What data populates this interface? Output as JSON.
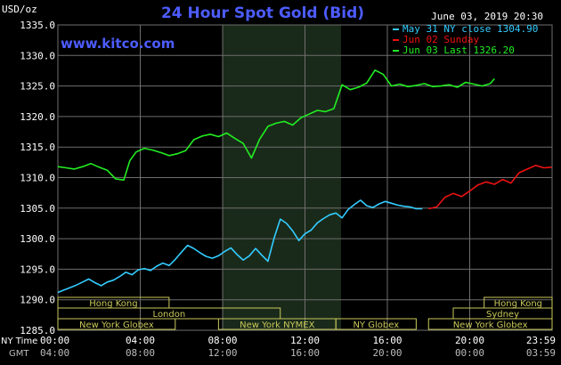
{
  "header": {
    "title": "24 Hour Spot Gold (Bid)",
    "unit": "USD/oz",
    "date": "June 03, 2019 20:30",
    "site": "www.kitco.com"
  },
  "colors": {
    "background": "#000000",
    "plot": "#000000",
    "grid": "#6e6e6e",
    "shade": "#1a2a1a",
    "title": "#4d5cff",
    "site": "#4d5cff",
    "text": "#ffffff",
    "green": "#22ee22",
    "cyan": "#33ccff",
    "red": "#ee1111",
    "market": "#c8c85a",
    "gmt_text": "#bbbbbb"
  },
  "markets": [
    {
      "name": "Hong Kong",
      "row": 0,
      "start": 0.0,
      "end": 9.0
    },
    {
      "name": "London",
      "row": 1,
      "start": 0.0,
      "end": 18.0
    },
    {
      "name": "New York NYMEX",
      "row": 2,
      "start": 13.0,
      "end": 22.5
    },
    {
      "name": "New York Globex",
      "row": 2,
      "start": 0.0,
      "end": 9.5
    },
    {
      "name": "NY Globex",
      "row": 2,
      "start": 22.5,
      "end": 29.0
    },
    {
      "name": "Hong Kong",
      "row": 0,
      "start": 34.5,
      "end": 40.0
    },
    {
      "name": "Sydney",
      "row": 1,
      "start": 32.0,
      "end": 40.0
    },
    {
      "name": "New York Globex",
      "row": 2,
      "start": 30.0,
      "end": 40.0
    }
  ],
  "time_axis": {
    "ny_label": "NY Time",
    "gmt_label": "GMT",
    "ny_ticks": [
      "00:00",
      "04:00",
      "08:00",
      "12:00",
      "16:00",
      "20:00",
      "23:59"
    ],
    "gmt_ticks": [
      "04:00",
      "08:00",
      "12:00",
      "16:00",
      "20:00",
      "00:00",
      "03:59"
    ]
  },
  "chart_data": {
    "type": "line",
    "title": "24 Hour Spot Gold (Bid)",
    "ylabel": "USD/oz",
    "xlabel": "NY Time",
    "ylim": [
      1285.0,
      1335.0
    ],
    "yticks": [
      1285.0,
      1290.0,
      1295.0,
      1300.0,
      1305.0,
      1310.0,
      1315.0,
      1320.0,
      1325.0,
      1330.0,
      1335.0
    ],
    "ytick_labels": [
      "1285.0",
      "1290.0",
      "1295.0",
      "1300.0",
      "1305.0",
      "1310.0",
      "1315.0",
      "1320.0",
      "1325.0",
      "1330.0",
      "1335.0"
    ],
    "xlim": [
      0,
      24
    ],
    "grid": true,
    "legend": "top-right",
    "shaded_period_hours": [
      8.0,
      13.75
    ],
    "series": [
      {
        "name": "May 31 NY close 1304.90",
        "color": "cyan",
        "x": [
          0.0,
          0.3,
          0.6,
          0.9,
          1.2,
          1.5,
          1.8,
          2.1,
          2.4,
          2.7,
          3.0,
          3.3,
          3.6,
          3.9,
          4.2,
          4.5,
          4.8,
          5.1,
          5.4,
          5.7,
          6.0,
          6.3,
          6.6,
          6.9,
          7.2,
          7.5,
          7.8,
          8.1,
          8.4,
          8.7,
          9.0,
          9.3,
          9.6,
          9.9,
          10.2,
          10.5,
          10.8,
          11.1,
          11.4,
          11.7,
          12.0,
          12.3,
          12.6,
          12.9,
          13.2,
          13.5,
          13.8,
          14.1,
          14.4,
          14.7,
          15.0,
          15.3,
          15.6,
          15.9,
          16.2,
          16.5,
          16.8,
          17.1,
          17.4,
          17.7
        ],
        "y": [
          1291.2,
          1291.6,
          1292.0,
          1292.4,
          1292.9,
          1293.4,
          1292.8,
          1292.3,
          1292.9,
          1293.2,
          1293.8,
          1294.5,
          1294.1,
          1294.9,
          1295.1,
          1294.8,
          1295.5,
          1296.0,
          1295.6,
          1296.6,
          1297.8,
          1298.9,
          1298.4,
          1297.7,
          1297.1,
          1296.8,
          1297.2,
          1297.9,
          1298.5,
          1297.4,
          1296.5,
          1297.2,
          1298.4,
          1297.3,
          1296.3,
          1300.1,
          1303.2,
          1302.5,
          1301.3,
          1299.7,
          1300.8,
          1301.4,
          1302.6,
          1303.3,
          1303.9,
          1304.2,
          1303.4,
          1304.8,
          1305.6,
          1306.3,
          1305.4,
          1305.1,
          1305.7,
          1306.1,
          1305.8,
          1305.5,
          1305.3,
          1305.2,
          1304.9,
          1304.9
        ]
      },
      {
        "name": "Jun 02 Sunday",
        "color": "red",
        "x": [
          18.0,
          18.4,
          18.8,
          19.2,
          19.6,
          20.0,
          20.4,
          20.8,
          21.2,
          21.6,
          22.0,
          22.4,
          22.8,
          23.2,
          23.6,
          23.98
        ],
        "y": [
          1304.9,
          1305.2,
          1306.8,
          1307.4,
          1306.9,
          1307.8,
          1308.8,
          1309.3,
          1308.9,
          1309.7,
          1309.1,
          1310.8,
          1311.4,
          1312.0,
          1311.6,
          1311.7
        ]
      },
      {
        "name": "Jun 03 Last 1326.20",
        "color": "green",
        "x": [
          0.0,
          0.4,
          0.8,
          1.2,
          1.6,
          2.0,
          2.4,
          2.8,
          3.2,
          3.5,
          3.8,
          4.2,
          4.6,
          5.0,
          5.4,
          5.8,
          6.2,
          6.6,
          7.0,
          7.4,
          7.8,
          8.2,
          8.6,
          9.0,
          9.4,
          9.8,
          10.2,
          10.6,
          11.0,
          11.4,
          11.8,
          12.2,
          12.6,
          13.0,
          13.4,
          13.8,
          14.2,
          14.6,
          15.0,
          15.4,
          15.8,
          16.2,
          16.6,
          17.0,
          17.4,
          17.8,
          18.2,
          18.6,
          19.0,
          19.4,
          19.8,
          20.2,
          20.6,
          21.0,
          21.2
        ],
        "y": [
          1311.8,
          1311.6,
          1311.4,
          1311.8,
          1312.3,
          1311.7,
          1311.2,
          1309.8,
          1309.6,
          1312.8,
          1314.2,
          1314.8,
          1314.5,
          1314.1,
          1313.6,
          1313.9,
          1314.4,
          1316.2,
          1316.8,
          1317.1,
          1316.7,
          1317.3,
          1316.4,
          1315.6,
          1313.2,
          1316.3,
          1318.4,
          1318.9,
          1319.2,
          1318.6,
          1319.8,
          1320.4,
          1321.0,
          1320.8,
          1321.3,
          1325.2,
          1324.4,
          1324.8,
          1325.5,
          1327.6,
          1326.9,
          1325.0,
          1325.3,
          1324.9,
          1325.1,
          1325.4,
          1324.9,
          1325.0,
          1325.2,
          1324.8,
          1325.6,
          1325.3,
          1325.0,
          1325.4,
          1326.2
        ]
      }
    ]
  }
}
